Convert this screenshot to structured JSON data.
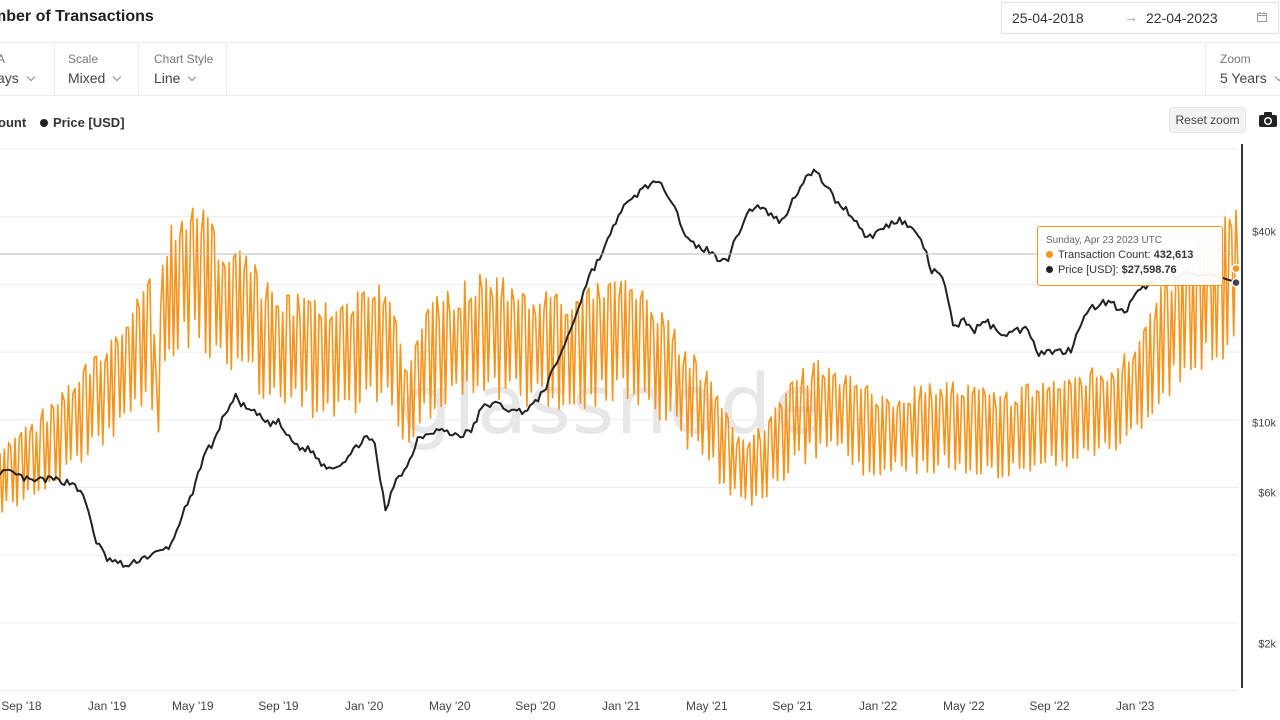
{
  "header": {
    "title": "mber of Transactions",
    "date_from": "25-04-2018",
    "date_arrow": "→",
    "date_to": "22-04-2023"
  },
  "options": {
    "sma": {
      "label": "A",
      "value": "ays"
    },
    "scale": {
      "label": "Scale",
      "value": "Mixed"
    },
    "chart_style": {
      "label": "Chart Style",
      "value": "Line"
    },
    "zoom": {
      "label": "Zoom",
      "value": "5 Years"
    }
  },
  "legend": {
    "tx_label": "ount",
    "price_label": "Price [USD]"
  },
  "reset_zoom_label": "Reset zoom",
  "watermark": "glassnode",
  "tooltip": {
    "date": "Sunday, Apr 23 2023 UTC",
    "tx_label": "Transaction Count:",
    "tx_value": "432,613",
    "price_label": "Price [USD]:",
    "price_value": "$27,598.76"
  },
  "colors": {
    "transactions": "#f7931a",
    "price": "#222222",
    "grid": "#ececec"
  },
  "chart_data": {
    "type": "line",
    "x_tick_labels": [
      "Sep '18",
      "Jan '19",
      "May '19",
      "Sep '19",
      "Jan '20",
      "May '20",
      "Sep '20",
      "Jan '21",
      "May '21",
      "Sep '21",
      "Jan '22",
      "May '22",
      "Sep '22",
      "Jan '23"
    ],
    "x_ticks_months": [
      4,
      8,
      12,
      16,
      20,
      24,
      28,
      32,
      36,
      40,
      44,
      48,
      52,
      56
    ],
    "x_range_months": [
      3,
      60.8
    ],
    "y_right_ticks": [
      {
        "label": "$40k",
        "value": 40000
      },
      {
        "label": "$10k",
        "value": 10000
      },
      {
        "label": "$6k",
        "value": 6000
      },
      {
        "label": "$2k",
        "value": 2000
      }
    ],
    "price_scale": "log",
    "price_range": [
      1450,
      75000
    ],
    "tx_range": [
      0,
      560000
    ],
    "grid": true,
    "series": [
      {
        "name": "Transaction Count",
        "axis": "left",
        "color": "#f7931a",
        "points": [
          [
            3.0,
            220000
          ],
          [
            3.5,
            218000
          ],
          [
            4.0,
            228000
          ],
          [
            4.5,
            235000
          ],
          [
            5.0,
            245000
          ],
          [
            5.5,
            250000
          ],
          [
            6.0,
            262000
          ],
          [
            6.5,
            275000
          ],
          [
            7.0,
            288000
          ],
          [
            7.5,
            300000
          ],
          [
            8.0,
            305000
          ],
          [
            8.5,
            320000
          ],
          [
            9.0,
            330000
          ],
          [
            9.5,
            345000
          ],
          [
            10.0,
            370000
          ],
          [
            10.3,
            280000
          ],
          [
            10.6,
            380000
          ],
          [
            11.0,
            410000
          ],
          [
            11.5,
            425000
          ],
          [
            12.0,
            430000
          ],
          [
            12.5,
            420000
          ],
          [
            13.0,
            405000
          ],
          [
            13.5,
            395000
          ],
          [
            14.0,
            388000
          ],
          [
            14.5,
            380000
          ],
          [
            15.0,
            370000
          ],
          [
            15.5,
            355000
          ],
          [
            16.0,
            352000
          ],
          [
            16.5,
            350000
          ],
          [
            17.0,
            345000
          ],
          [
            17.5,
            340000
          ],
          [
            18.0,
            340000
          ],
          [
            18.5,
            338000
          ],
          [
            19.0,
            340000
          ],
          [
            19.5,
            345000
          ],
          [
            20.0,
            348000
          ],
          [
            20.5,
            352000
          ],
          [
            21.0,
            355000
          ],
          [
            21.5,
            330000
          ],
          [
            22.0,
            290000
          ],
          [
            22.5,
            320000
          ],
          [
            23.0,
            335000
          ],
          [
            23.5,
            345000
          ],
          [
            24.0,
            350000
          ],
          [
            24.5,
            355000
          ],
          [
            25.0,
            360000
          ],
          [
            25.5,
            362000
          ],
          [
            26.0,
            365000
          ],
          [
            26.5,
            360000
          ],
          [
            27.0,
            358000
          ],
          [
            27.5,
            355000
          ],
          [
            28.0,
            350000
          ],
          [
            28.5,
            348000
          ],
          [
            29.0,
            345000
          ],
          [
            29.5,
            340000
          ],
          [
            30.0,
            345000
          ],
          [
            30.5,
            350000
          ],
          [
            31.0,
            355000
          ],
          [
            31.5,
            360000
          ],
          [
            32.0,
            360000
          ],
          [
            32.5,
            355000
          ],
          [
            33.0,
            350000
          ],
          [
            33.5,
            340000
          ],
          [
            34.0,
            330000
          ],
          [
            34.5,
            315000
          ],
          [
            35.0,
            300000
          ],
          [
            35.5,
            290000
          ],
          [
            36.0,
            280000
          ],
          [
            36.5,
            260000
          ],
          [
            37.0,
            240000
          ],
          [
            37.5,
            225000
          ],
          [
            38.0,
            220000
          ],
          [
            38.5,
            230000
          ],
          [
            39.0,
            240000
          ],
          [
            39.5,
            255000
          ],
          [
            40.0,
            270000
          ],
          [
            40.5,
            280000
          ],
          [
            41.0,
            285000
          ],
          [
            41.5,
            290000
          ],
          [
            42.0,
            285000
          ],
          [
            42.5,
            280000
          ],
          [
            43.0,
            270000
          ],
          [
            43.5,
            265000
          ],
          [
            44.0,
            262000
          ],
          [
            44.5,
            260000
          ],
          [
            45.0,
            262000
          ],
          [
            45.5,
            265000
          ],
          [
            46.0,
            268000
          ],
          [
            46.5,
            270000
          ],
          [
            47.0,
            272000
          ],
          [
            47.5,
            270000
          ],
          [
            48.0,
            268000
          ],
          [
            48.5,
            265000
          ],
          [
            49.0,
            262000
          ],
          [
            49.5,
            260000
          ],
          [
            50.0,
            262000
          ],
          [
            50.5,
            265000
          ],
          [
            51.0,
            268000
          ],
          [
            51.5,
            270000
          ],
          [
            52.0,
            272000
          ],
          [
            52.5,
            275000
          ],
          [
            53.0,
            278000
          ],
          [
            53.5,
            280000
          ],
          [
            54.0,
            282000
          ],
          [
            54.5,
            285000
          ],
          [
            55.0,
            288000
          ],
          [
            55.5,
            295000
          ],
          [
            56.0,
            305000
          ],
          [
            56.5,
            320000
          ],
          [
            57.0,
            345000
          ],
          [
            57.5,
            365000
          ],
          [
            58.0,
            380000
          ],
          [
            58.5,
            390000
          ],
          [
            59.0,
            400000
          ],
          [
            59.5,
            395000
          ],
          [
            60.0,
            410000
          ],
          [
            60.5,
            425000
          ],
          [
            60.8,
            432613
          ]
        ]
      },
      {
        "name": "Price [USD]",
        "axis": "right",
        "color": "#222222",
        "points": [
          [
            3.0,
            7000
          ],
          [
            3.5,
            6900
          ],
          [
            4.0,
            6700
          ],
          [
            4.5,
            6500
          ],
          [
            5.0,
            6600
          ],
          [
            5.5,
            6600
          ],
          [
            6.0,
            6500
          ],
          [
            6.5,
            6400
          ],
          [
            7.0,
            5600
          ],
          [
            7.5,
            4200
          ],
          [
            8.0,
            3700
          ],
          [
            8.5,
            3600
          ],
          [
            9.0,
            3500
          ],
          [
            9.5,
            3700
          ],
          [
            10.0,
            3800
          ],
          [
            10.5,
            3900
          ],
          [
            11.0,
            4100
          ],
          [
            11.5,
            5100
          ],
          [
            12.0,
            5900
          ],
          [
            12.5,
            7900
          ],
          [
            13.0,
            8700
          ],
          [
            13.5,
            10700
          ],
          [
            14.0,
            12000
          ],
          [
            14.5,
            11000
          ],
          [
            15.0,
            10600
          ],
          [
            15.5,
            9900
          ],
          [
            16.0,
            10000
          ],
          [
            16.5,
            8900
          ],
          [
            17.0,
            8300
          ],
          [
            17.5,
            8200
          ],
          [
            18.0,
            7400
          ],
          [
            18.5,
            7200
          ],
          [
            19.0,
            7500
          ],
          [
            19.5,
            8100
          ],
          [
            20.0,
            9000
          ],
          [
            20.5,
            8500
          ],
          [
            21.0,
            5200
          ],
          [
            21.5,
            6700
          ],
          [
            22.0,
            7200
          ],
          [
            22.5,
            8900
          ],
          [
            23.0,
            9300
          ],
          [
            23.5,
            9500
          ],
          [
            24.0,
            9200
          ],
          [
            24.5,
            9100
          ],
          [
            25.0,
            9400
          ],
          [
            25.5,
            11100
          ],
          [
            26.0,
            11500
          ],
          [
            26.5,
            11200
          ],
          [
            27.0,
            10800
          ],
          [
            27.5,
            10900
          ],
          [
            28.0,
            11500
          ],
          [
            28.5,
            13000
          ],
          [
            29.0,
            15500
          ],
          [
            29.5,
            18500
          ],
          [
            30.0,
            23000
          ],
          [
            30.5,
            29000
          ],
          [
            31.0,
            33000
          ],
          [
            31.5,
            39000
          ],
          [
            32.0,
            47000
          ],
          [
            32.5,
            50000
          ],
          [
            33.0,
            55000
          ],
          [
            33.5,
            57000
          ],
          [
            34.0,
            55000
          ],
          [
            34.5,
            49000
          ],
          [
            35.0,
            38000
          ],
          [
            35.5,
            36000
          ],
          [
            36.0,
            35000
          ],
          [
            36.5,
            33000
          ],
          [
            37.0,
            33000
          ],
          [
            37.5,
            40000
          ],
          [
            38.0,
            47000
          ],
          [
            38.5,
            48000
          ],
          [
            39.0,
            45000
          ],
          [
            39.5,
            43000
          ],
          [
            40.0,
            50000
          ],
          [
            40.5,
            58000
          ],
          [
            41.0,
            62000
          ],
          [
            41.5,
            57000
          ],
          [
            42.0,
            50000
          ],
          [
            42.5,
            47000
          ],
          [
            43.0,
            43000
          ],
          [
            43.5,
            38000
          ],
          [
            44.0,
            40000
          ],
          [
            44.5,
            42000
          ],
          [
            45.0,
            44000
          ],
          [
            45.5,
            41000
          ],
          [
            46.0,
            38000
          ],
          [
            46.5,
            30000
          ],
          [
            47.0,
            29000
          ],
          [
            47.5,
            20000
          ],
          [
            48.0,
            21000
          ],
          [
            48.5,
            19500
          ],
          [
            49.0,
            21000
          ],
          [
            49.5,
            19500
          ],
          [
            50.0,
            19000
          ],
          [
            50.5,
            19500
          ],
          [
            51.0,
            19800
          ],
          [
            51.5,
            16500
          ],
          [
            52.0,
            16800
          ],
          [
            52.5,
            16700
          ],
          [
            53.0,
            17000
          ],
          [
            53.5,
            21000
          ],
          [
            54.0,
            23000
          ],
          [
            54.5,
            24000
          ],
          [
            55.0,
            23500
          ],
          [
            55.5,
            22000
          ],
          [
            56.0,
            25000
          ],
          [
            56.5,
            27000
          ],
          [
            57.0,
            28000
          ],
          [
            57.5,
            29000
          ],
          [
            58.0,
            28500
          ],
          [
            58.5,
            29500
          ],
          [
            59.0,
            29000
          ],
          [
            60.8,
            27598.76
          ]
        ]
      }
    ]
  }
}
